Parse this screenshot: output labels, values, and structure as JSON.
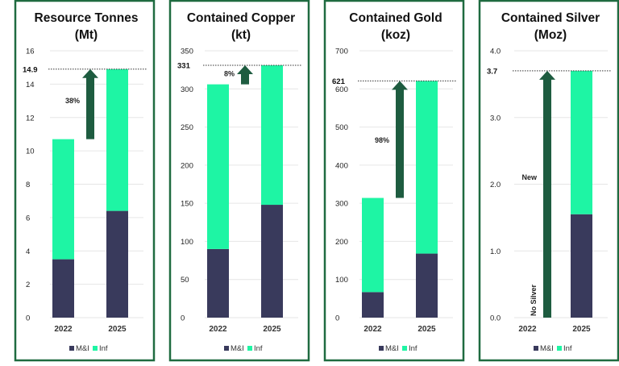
{
  "colors": {
    "mi": "#393a5c",
    "inf": "#1ef5a4",
    "arrow": "#1e5c40",
    "border": "#1f6b40",
    "grid": "#e6e6e6"
  },
  "chart_data": [
    {
      "type": "bar",
      "stacked": true,
      "title": [
        "Resource Tonnes",
        "(Mt)"
      ],
      "categories": [
        "2022",
        "2025"
      ],
      "series": [
        {
          "name": "M&I",
          "values": [
            3.5,
            6.4
          ]
        },
        {
          "name": "Inf",
          "values": [
            7.2,
            8.5
          ]
        }
      ],
      "ylim": [
        0,
        16
      ],
      "yticks": [
        "0",
        "2",
        "4",
        "6",
        "8",
        "10",
        "12",
        "14",
        "16"
      ],
      "ytick_values": [
        0,
        2,
        4,
        6,
        8,
        10,
        12,
        14,
        16
      ],
      "reference_line": {
        "value": 14.9,
        "label": "14.9"
      },
      "arrow": {
        "from": 10.7,
        "to": 14.9,
        "label": "38%",
        "label_at": 13.0
      },
      "grid": true,
      "legend": "bottom"
    },
    {
      "type": "bar",
      "stacked": true,
      "title": [
        "Contained Copper",
        "(kt)"
      ],
      "categories": [
        "2022",
        "2025"
      ],
      "series": [
        {
          "name": "M&I",
          "values": [
            90,
            148
          ]
        },
        {
          "name": "Inf",
          "values": [
            216,
            183
          ]
        }
      ],
      "ylim": [
        0,
        350
      ],
      "yticks": [
        "0",
        "50",
        "100",
        "150",
        "200",
        "250",
        "300",
        "350"
      ],
      "ytick_values": [
        0,
        50,
        100,
        150,
        200,
        250,
        300,
        350
      ],
      "reference_line": {
        "value": 331,
        "label": "331"
      },
      "arrow": {
        "from": 306,
        "to": 331,
        "label": "8%",
        "label_at": 320
      },
      "grid": true,
      "legend": "bottom"
    },
    {
      "type": "bar",
      "stacked": true,
      "title": [
        "Contained Gold",
        "(koz)"
      ],
      "categories": [
        "2022",
        "2025"
      ],
      "series": [
        {
          "name": "M&I",
          "values": [
            67,
            168
          ]
        },
        {
          "name": "Inf",
          "values": [
            247,
            453
          ]
        }
      ],
      "ylim": [
        0,
        700
      ],
      "yticks": [
        "0",
        "100",
        "200",
        "300",
        "400",
        "500",
        "600",
        "700"
      ],
      "ytick_values": [
        0,
        100,
        200,
        300,
        400,
        500,
        600,
        700
      ],
      "reference_line": {
        "value": 621,
        "label": "621"
      },
      "arrow": {
        "from": 314,
        "to": 621,
        "label": "98%",
        "label_at": 465
      },
      "grid": true,
      "legend": "bottom"
    },
    {
      "type": "bar",
      "stacked": true,
      "title": [
        "Contained Silver",
        "(Moz)"
      ],
      "categories": [
        "2022",
        "2025"
      ],
      "series": [
        {
          "name": "M&I",
          "values": [
            0,
            1.55
          ]
        },
        {
          "name": "Inf",
          "values": [
            0,
            2.15
          ]
        }
      ],
      "ylim": [
        0,
        4
      ],
      "yticks": [
        "0.0",
        "1.0",
        "2.0",
        "3.0",
        "4.0"
      ],
      "ytick_values": [
        0,
        1,
        2,
        3,
        4
      ],
      "reference_line": {
        "value": 3.7,
        "label": "3.7"
      },
      "arrow": {
        "from": 0,
        "to": 3.7,
        "label": "New",
        "label_at": 2.1
      },
      "annotation": {
        "text": "No Silver",
        "rotated": true
      },
      "grid": true,
      "legend": "bottom"
    }
  ]
}
